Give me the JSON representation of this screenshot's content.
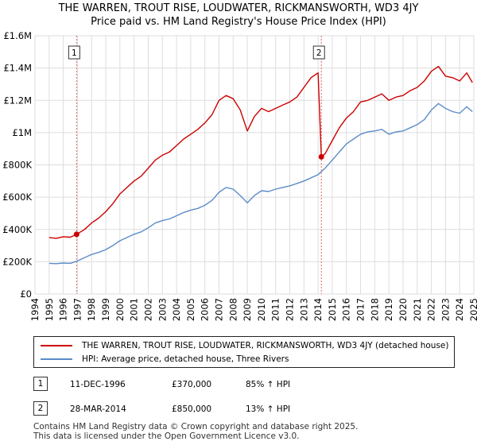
{
  "header": {
    "title_line1": "THE WARREN, TROUT RISE, LOUDWATER, RICKMANSWORTH, WD3 4JY",
    "title_line2": "Price paid vs. HM Land Registry's House Price Index (HPI)"
  },
  "chart_data": {
    "type": "line",
    "title": "THE WARREN, TROUT RISE, LOUDWATER, RICKMANSWORTH, WD3 4JY",
    "subtitle": "Price paid vs. HM Land Registry's House Price Index (HPI)",
    "xlabel": "",
    "ylabel": "",
    "xlim": [
      1994.0,
      2025.0
    ],
    "ylim": [
      0,
      1600000
    ],
    "x_ticks": [
      1994,
      1995,
      1996,
      1997,
      1998,
      1999,
      2000,
      2001,
      2002,
      2003,
      2004,
      2005,
      2006,
      2007,
      2008,
      2009,
      2010,
      2011,
      2012,
      2013,
      2014,
      2015,
      2016,
      2017,
      2018,
      2019,
      2020,
      2021,
      2022,
      2023,
      2024,
      2025
    ],
    "y_ticks": [
      0,
      200000,
      400000,
      600000,
      800000,
      1000000,
      1200000,
      1400000,
      1600000
    ],
    "y_tick_labels": [
      "£0",
      "£200K",
      "£400K",
      "£600K",
      "£800K",
      "£1M",
      "£1.2M",
      "£1.4M",
      "£1.6M"
    ],
    "grid": true,
    "series": [
      {
        "name": "THE WARREN, TROUT RISE, LOUDWATER, RICKMANSWORTH, WD3 4JY (detached house)",
        "color": "#cc0000",
        "x": [
          1995.0,
          1995.5,
          1996.0,
          1996.5,
          1996.94,
          1997.5,
          1998.0,
          1998.5,
          1999.0,
          1999.5,
          2000.0,
          2000.5,
          2001.0,
          2001.5,
          2002.0,
          2002.5,
          2003.0,
          2003.5,
          2004.0,
          2004.5,
          2005.0,
          2005.5,
          2006.0,
          2006.5,
          2007.0,
          2007.5,
          2008.0,
          2008.5,
          2009.0,
          2009.5,
          2010.0,
          2010.5,
          2011.0,
          2011.5,
          2012.0,
          2012.5,
          2013.0,
          2013.5,
          2014.0,
          2014.23,
          2014.5,
          2015.0,
          2015.5,
          2016.0,
          2016.5,
          2017.0,
          2017.5,
          2018.0,
          2018.5,
          2019.0,
          2019.5,
          2020.0,
          2020.5,
          2021.0,
          2021.5,
          2022.0,
          2022.5,
          2023.0,
          2023.5,
          2024.0,
          2024.5,
          2024.9
        ],
        "values": [
          350000,
          345000,
          355000,
          352000,
          370000,
          400000,
          440000,
          470000,
          510000,
          560000,
          620000,
          660000,
          700000,
          730000,
          780000,
          830000,
          860000,
          880000,
          920000,
          960000,
          990000,
          1020000,
          1060000,
          1110000,
          1200000,
          1230000,
          1210000,
          1140000,
          1010000,
          1100000,
          1150000,
          1130000,
          1150000,
          1170000,
          1190000,
          1220000,
          1280000,
          1340000,
          1370000,
          850000,
          870000,
          950000,
          1030000,
          1090000,
          1130000,
          1190000,
          1200000,
          1220000,
          1240000,
          1200000,
          1220000,
          1230000,
          1260000,
          1280000,
          1320000,
          1380000,
          1410000,
          1350000,
          1340000,
          1320000,
          1370000,
          1310000
        ]
      },
      {
        "name": "HPI: Average price, detached house, Three Rivers",
        "color": "#5b8cc8",
        "x": [
          1995.0,
          1995.5,
          1996.0,
          1996.5,
          1997.0,
          1997.5,
          1998.0,
          1998.5,
          1999.0,
          1999.5,
          2000.0,
          2000.5,
          2001.0,
          2001.5,
          2002.0,
          2002.5,
          2003.0,
          2003.5,
          2004.0,
          2004.5,
          2005.0,
          2005.5,
          2006.0,
          2006.5,
          2007.0,
          2007.5,
          2008.0,
          2008.5,
          2009.0,
          2009.5,
          2010.0,
          2010.5,
          2011.0,
          2011.5,
          2012.0,
          2012.5,
          2013.0,
          2013.5,
          2014.0,
          2014.5,
          2015.0,
          2015.5,
          2016.0,
          2016.5,
          2017.0,
          2017.5,
          2018.0,
          2018.5,
          2019.0,
          2019.5,
          2020.0,
          2020.5,
          2021.0,
          2021.5,
          2022.0,
          2022.5,
          2023.0,
          2023.5,
          2024.0,
          2024.5,
          2024.9
        ],
        "values": [
          190000,
          188000,
          192000,
          190000,
          205000,
          225000,
          245000,
          258000,
          275000,
          300000,
          330000,
          350000,
          370000,
          385000,
          410000,
          440000,
          455000,
          465000,
          485000,
          505000,
          520000,
          530000,
          550000,
          580000,
          630000,
          660000,
          650000,
          610000,
          565000,
          610000,
          640000,
          635000,
          650000,
          660000,
          670000,
          685000,
          700000,
          720000,
          740000,
          780000,
          830000,
          880000,
          930000,
          960000,
          990000,
          1005000,
          1010000,
          1020000,
          990000,
          1005000,
          1010000,
          1030000,
          1050000,
          1080000,
          1140000,
          1180000,
          1150000,
          1130000,
          1120000,
          1160000,
          1130000
        ]
      }
    ],
    "annotations": [
      {
        "label": "1",
        "x": 1996.94,
        "value": 370000
      },
      {
        "label": "2",
        "x": 2014.23,
        "value": 850000
      }
    ]
  },
  "legend": {
    "items": [
      {
        "label": "THE WARREN, TROUT RISE, LOUDWATER, RICKMANSWORTH, WD3 4JY (detached house)",
        "color": "#cc0000"
      },
      {
        "label": "HPI: Average price, detached house, Three Rivers",
        "color": "#5b8cc8"
      }
    ]
  },
  "transactions": [
    {
      "num": "1",
      "date": "11-DEC-1996",
      "price": "£370,000",
      "hpi": "85% ↑ HPI"
    },
    {
      "num": "2",
      "date": "28-MAR-2014",
      "price": "£850,000",
      "hpi": "13% ↑ HPI"
    }
  ],
  "footer": {
    "line1": "Contains HM Land Registry data © Crown copyright and database right 2025.",
    "line2": "This data is licensed under the Open Government Licence v3.0."
  }
}
